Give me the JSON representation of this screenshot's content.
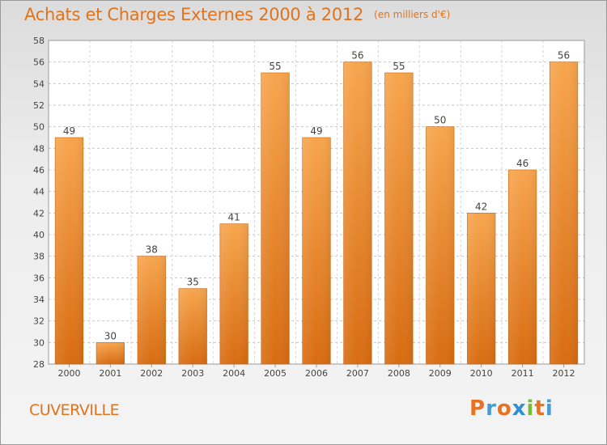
{
  "header": {
    "title": "Achats et Charges Externes 2000 à 2012",
    "subtitle": "(en milliers d'€)"
  },
  "footer": {
    "commune": "CUVERVILLE",
    "logo_text": "Proxiti"
  },
  "colors": {
    "accent": "#e0741e",
    "bar_top": "#f7a54e",
    "bar_bottom": "#d86c12",
    "logo_letters": [
      "#e8721f",
      "#4a9ad4",
      "#e8721f",
      "#2f8fd0",
      "#7ab93a",
      "#e8721f",
      "#4a9ad4"
    ]
  },
  "chart_data": {
    "type": "bar",
    "categories": [
      "2000",
      "2001",
      "2002",
      "2003",
      "2004",
      "2005",
      "2006",
      "2007",
      "2008",
      "2009",
      "2010",
      "2011",
      "2012"
    ],
    "values": [
      49,
      30,
      38,
      35,
      41,
      55,
      49,
      56,
      55,
      50,
      42,
      46,
      56
    ],
    "ylim": [
      28,
      58
    ],
    "yticks": [
      28,
      30,
      32,
      34,
      36,
      38,
      40,
      42,
      44,
      46,
      48,
      50,
      52,
      54,
      56,
      58
    ],
    "grid": true,
    "data_labels": true
  }
}
